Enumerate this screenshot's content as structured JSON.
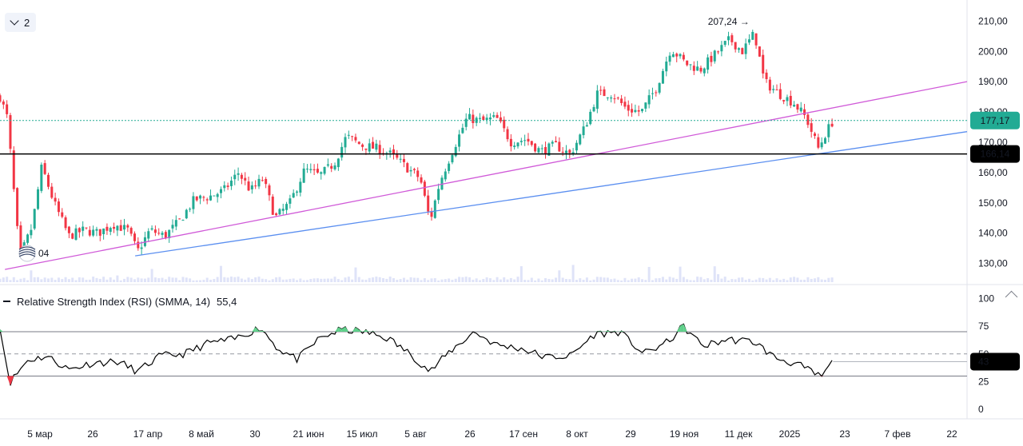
{
  "toolbar": {
    "collapse_count": "2",
    "collapse_icon": "chevron-down-icon"
  },
  "colors": {
    "up": "#22ab94",
    "down": "#f23645",
    "trend_magenta": "#d05ad8",
    "trend_blue": "#5b8ff0",
    "last_price_badge": "#22ab94",
    "level_badge": "#000000"
  },
  "chart_data": [
    {
      "type": "candlestick",
      "title": "",
      "y_axis": {
        "position": "right",
        "min": 120,
        "max": 213,
        "ticks": [
          "210,00",
          "200,00",
          "190,00",
          "180,00",
          "170,00",
          "160,00",
          "150,00",
          "140,00",
          "130,00"
        ]
      },
      "x_axis": {
        "labels": [
          "5 мар",
          "26",
          "17 апр",
          "8 май",
          "30",
          "21 июн",
          "15 июл",
          "5 авг",
          "26",
          "17 сен",
          "8 окт",
          "29",
          "19 ноя",
          "11 дек",
          "2025",
          "23",
          "7 фев",
          "22"
        ]
      },
      "last_price": {
        "value": 177.17,
        "label": "177,17"
      },
      "horizontal_level": {
        "value": 166.14,
        "label": "166,14"
      },
      "max_marker": {
        "value": 207.24,
        "label": "207,24 →"
      },
      "min_marker": {
        "label": "04"
      },
      "trendlines": [
        {
          "name": "",
          "color": "magenta",
          "from": {
            "date": "2024-02-15",
            "value": 128
          },
          "to": {
            "date": "2025-02-26",
            "value": 190
          }
        },
        {
          "name": "",
          "color": "blue",
          "from": {
            "date": "2024-04-08",
            "value": 132.5
          },
          "to": {
            "date": "2025-02-26",
            "value": 173.5
          }
        }
      ],
      "close_path": [
        {
          "date": "2024-02-13",
          "close": 185
        },
        {
          "date": "2024-02-16",
          "close": 178
        },
        {
          "date": "2024-02-21",
          "close": 132
        },
        {
          "date": "2024-02-26",
          "close": 142
        },
        {
          "date": "2024-03-01",
          "close": 162
        },
        {
          "date": "2024-03-06",
          "close": 150
        },
        {
          "date": "2024-03-12",
          "close": 139
        },
        {
          "date": "2024-03-18",
          "close": 141
        },
        {
          "date": "2024-03-24",
          "close": 140
        },
        {
          "date": "2024-03-30",
          "close": 143
        },
        {
          "date": "2024-04-05",
          "close": 141
        },
        {
          "date": "2024-04-09",
          "close": 134
        },
        {
          "date": "2024-04-14",
          "close": 141
        },
        {
          "date": "2024-04-20",
          "close": 139
        },
        {
          "date": "2024-04-26",
          "close": 144
        },
        {
          "date": "2024-05-02",
          "close": 151
        },
        {
          "date": "2024-05-08",
          "close": 152
        },
        {
          "date": "2024-05-14",
          "close": 154
        },
        {
          "date": "2024-05-20",
          "close": 160
        },
        {
          "date": "2024-05-25",
          "close": 154
        },
        {
          "date": "2024-05-30",
          "close": 158
        },
        {
          "date": "2024-06-04",
          "close": 145
        },
        {
          "date": "2024-06-10",
          "close": 150
        },
        {
          "date": "2024-06-16",
          "close": 161
        },
        {
          "date": "2024-06-22",
          "close": 159
        },
        {
          "date": "2024-06-28",
          "close": 163
        },
        {
          "date": "2024-07-03",
          "close": 172
        },
        {
          "date": "2024-07-09",
          "close": 169
        },
        {
          "date": "2024-07-15",
          "close": 168
        },
        {
          "date": "2024-07-21",
          "close": 166
        },
        {
          "date": "2024-07-27",
          "close": 162
        },
        {
          "date": "2024-08-02",
          "close": 158
        },
        {
          "date": "2024-08-06",
          "close": 144
        },
        {
          "date": "2024-08-10",
          "close": 157
        },
        {
          "date": "2024-08-15",
          "close": 167
        },
        {
          "date": "2024-08-21",
          "close": 178
        },
        {
          "date": "2024-08-27",
          "close": 177
        },
        {
          "date": "2024-09-02",
          "close": 178
        },
        {
          "date": "2024-09-08",
          "close": 170
        },
        {
          "date": "2024-09-14",
          "close": 171
        },
        {
          "date": "2024-09-20",
          "close": 167
        },
        {
          "date": "2024-09-26",
          "close": 169
        },
        {
          "date": "2024-10-02",
          "close": 166
        },
        {
          "date": "2024-10-08",
          "close": 175
        },
        {
          "date": "2024-10-13",
          "close": 186
        },
        {
          "date": "2024-10-19",
          "close": 186
        },
        {
          "date": "2024-10-25",
          "close": 181
        },
        {
          "date": "2024-10-31",
          "close": 180
        },
        {
          "date": "2024-11-06",
          "close": 188
        },
        {
          "date": "2024-11-12",
          "close": 201
        },
        {
          "date": "2024-11-18",
          "close": 196
        },
        {
          "date": "2024-11-24",
          "close": 194
        },
        {
          "date": "2024-11-30",
          "close": 199
        },
        {
          "date": "2024-12-06",
          "close": 204
        },
        {
          "date": "2024-12-11",
          "close": 200
        },
        {
          "date": "2024-12-16",
          "close": 206
        },
        {
          "date": "2024-12-20",
          "close": 190
        },
        {
          "date": "2024-12-26",
          "close": 186
        },
        {
          "date": "2025-01-01",
          "close": 183
        },
        {
          "date": "2025-01-06",
          "close": 178
        },
        {
          "date": "2025-01-11",
          "close": 168
        },
        {
          "date": "2025-01-14",
          "close": 173
        },
        {
          "date": "2025-01-17",
          "close": 177.17
        }
      ]
    },
    {
      "type": "line",
      "title": "Relative Strength Index (RSI) (SMMA, 14)",
      "title_value": "55,4",
      "y_axis": {
        "min": 0,
        "max": 100,
        "ticks": [
          "100",
          "75",
          "50",
          "25",
          "0"
        ]
      },
      "bands": {
        "upper": 70,
        "middle": 50,
        "lower": 30
      },
      "last_value": {
        "value": 43,
        "label": "43"
      },
      "points": [
        {
          "date": "2024-02-13",
          "value": 72
        },
        {
          "date": "2024-02-17",
          "value": 24
        },
        {
          "date": "2024-02-24",
          "value": 44
        },
        {
          "date": "2024-03-03",
          "value": 48
        },
        {
          "date": "2024-03-12",
          "value": 36
        },
        {
          "date": "2024-03-22",
          "value": 42
        },
        {
          "date": "2024-04-01",
          "value": 43
        },
        {
          "date": "2024-04-09",
          "value": 34
        },
        {
          "date": "2024-04-18",
          "value": 48
        },
        {
          "date": "2024-04-28",
          "value": 50
        },
        {
          "date": "2024-05-08",
          "value": 60
        },
        {
          "date": "2024-05-18",
          "value": 63
        },
        {
          "date": "2024-05-29",
          "value": 74
        },
        {
          "date": "2024-06-05",
          "value": 55
        },
        {
          "date": "2024-06-13",
          "value": 45
        },
        {
          "date": "2024-06-22",
          "value": 64
        },
        {
          "date": "2024-07-01",
          "value": 72
        },
        {
          "date": "2024-07-10",
          "value": 70
        },
        {
          "date": "2024-07-20",
          "value": 64
        },
        {
          "date": "2024-07-30",
          "value": 48
        },
        {
          "date": "2024-08-06",
          "value": 34
        },
        {
          "date": "2024-08-14",
          "value": 52
        },
        {
          "date": "2024-08-24",
          "value": 70
        },
        {
          "date": "2024-09-02",
          "value": 58
        },
        {
          "date": "2024-09-12",
          "value": 55
        },
        {
          "date": "2024-09-22",
          "value": 47
        },
        {
          "date": "2024-10-02",
          "value": 48
        },
        {
          "date": "2024-10-12",
          "value": 68
        },
        {
          "date": "2024-10-22",
          "value": 70
        },
        {
          "date": "2024-11-01",
          "value": 50
        },
        {
          "date": "2024-11-11",
          "value": 61
        },
        {
          "date": "2024-11-17",
          "value": 75
        },
        {
          "date": "2024-11-25",
          "value": 57
        },
        {
          "date": "2024-12-05",
          "value": 63
        },
        {
          "date": "2024-12-16",
          "value": 61
        },
        {
          "date": "2024-12-24",
          "value": 47
        },
        {
          "date": "2025-01-03",
          "value": 40
        },
        {
          "date": "2025-01-12",
          "value": 29
        },
        {
          "date": "2025-01-17",
          "value": 43
        }
      ]
    }
  ]
}
